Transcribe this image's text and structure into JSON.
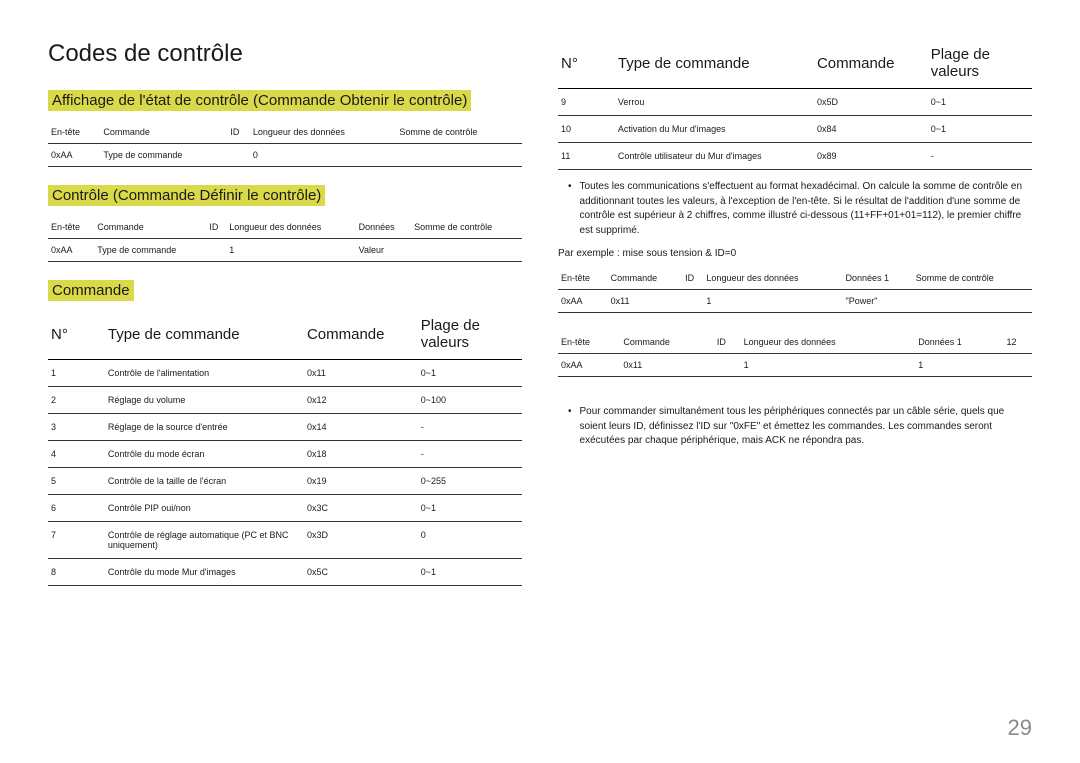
{
  "page_number": "29",
  "left": {
    "title": "Codes de contrôle",
    "section1": {
      "heading": "Affichage de l'état de contrôle (Commande Obtenir le contrôle)",
      "headers": [
        "En-tête",
        "Commande",
        "ID",
        "Longueur des données",
        "Somme de contrôle"
      ],
      "row": [
        "0xAA",
        "Type de commande",
        "",
        "0",
        ""
      ]
    },
    "section2": {
      "heading": "Contrôle (Commande Définir le contrôle)",
      "headers": [
        "En-tête",
        "Commande",
        "ID",
        "Longueur des données",
        "Données",
        "Somme de contrôle"
      ],
      "row": [
        "0xAA",
        "Type de commande",
        "",
        "1",
        "Valeur",
        ""
      ]
    },
    "section3": {
      "heading": "Commande",
      "headers": [
        "N°",
        "Type de commande",
        "Commande",
        "Plage de valeurs"
      ],
      "rows": [
        [
          "1",
          "Contrôle de l'alimentation",
          "0x11",
          "0~1"
        ],
        [
          "2",
          "Réglage du volume",
          "0x12",
          "0~100"
        ],
        [
          "3",
          "Réglage de la source d'entrée",
          "0x14",
          "-"
        ],
        [
          "4",
          "Contrôle du mode écran",
          "0x18",
          "-"
        ],
        [
          "5",
          "Contrôle de la taille de l'écran",
          "0x19",
          "0~255"
        ],
        [
          "6",
          "Contrôle PIP oui/non",
          "0x3C",
          "0~1"
        ],
        [
          "7",
          "Contrôle de réglage automatique (PC et BNC uniquement)",
          "0x3D",
          "0"
        ],
        [
          "8",
          "Contrôle du mode Mur d'images",
          "0x5C",
          "0~1"
        ]
      ]
    }
  },
  "right": {
    "cmd_continued": {
      "headers": [
        "N°",
        "Type de commande",
        "Commande",
        "Plage de valeurs"
      ],
      "rows": [
        [
          "9",
          "Verrou",
          "0x5D",
          "0~1"
        ],
        [
          "10",
          "Activation du Mur d'images",
          "0x84",
          "0~1"
        ],
        [
          "11",
          "Contrôle utilisateur du Mur d'images",
          "0x89",
          "-"
        ]
      ]
    },
    "bullet1": "Toutes les communications s'effectuent au format hexadécimal. On calcule la somme de contrôle en additionnant toutes les valeurs, à l'exception de l'en-tête. Si le résultat de l'addition d'une somme de contrôle est supérieur à 2 chiffres, comme illustré ci-dessous (11+FF+01+01=112), le premier chiffre est supprimé.",
    "example_label": "Par exemple : mise sous tension & ID=0",
    "ex_table1": {
      "headers": [
        "En-tête",
        "Commande",
        "ID",
        "Longueur des données",
        "Données 1",
        "Somme de contrôle"
      ],
      "row": [
        "0xAA",
        "0x11",
        "",
        "1",
        "\"Power\"",
        ""
      ]
    },
    "ex_table2": {
      "headers": [
        "En-tête",
        "Commande",
        "ID",
        "Longueur des données",
        "Données 1",
        "12"
      ],
      "row": [
        "0xAA",
        "0x11",
        "",
        "1",
        "1",
        ""
      ]
    },
    "bullet2": "Pour commander simultanément tous les périphériques connectés par un câble série, quels que soient leurs ID, définissez l'ID sur \"0xFE\" et émettez les commandes. Les commandes seront exécutées par chaque périphérique, mais ACK ne répondra pas."
  },
  "colors": {
    "highlight": "#d9d94a",
    "text": "#1a1a1a",
    "pagenum": "#8a8a8a",
    "border": "#333333"
  }
}
